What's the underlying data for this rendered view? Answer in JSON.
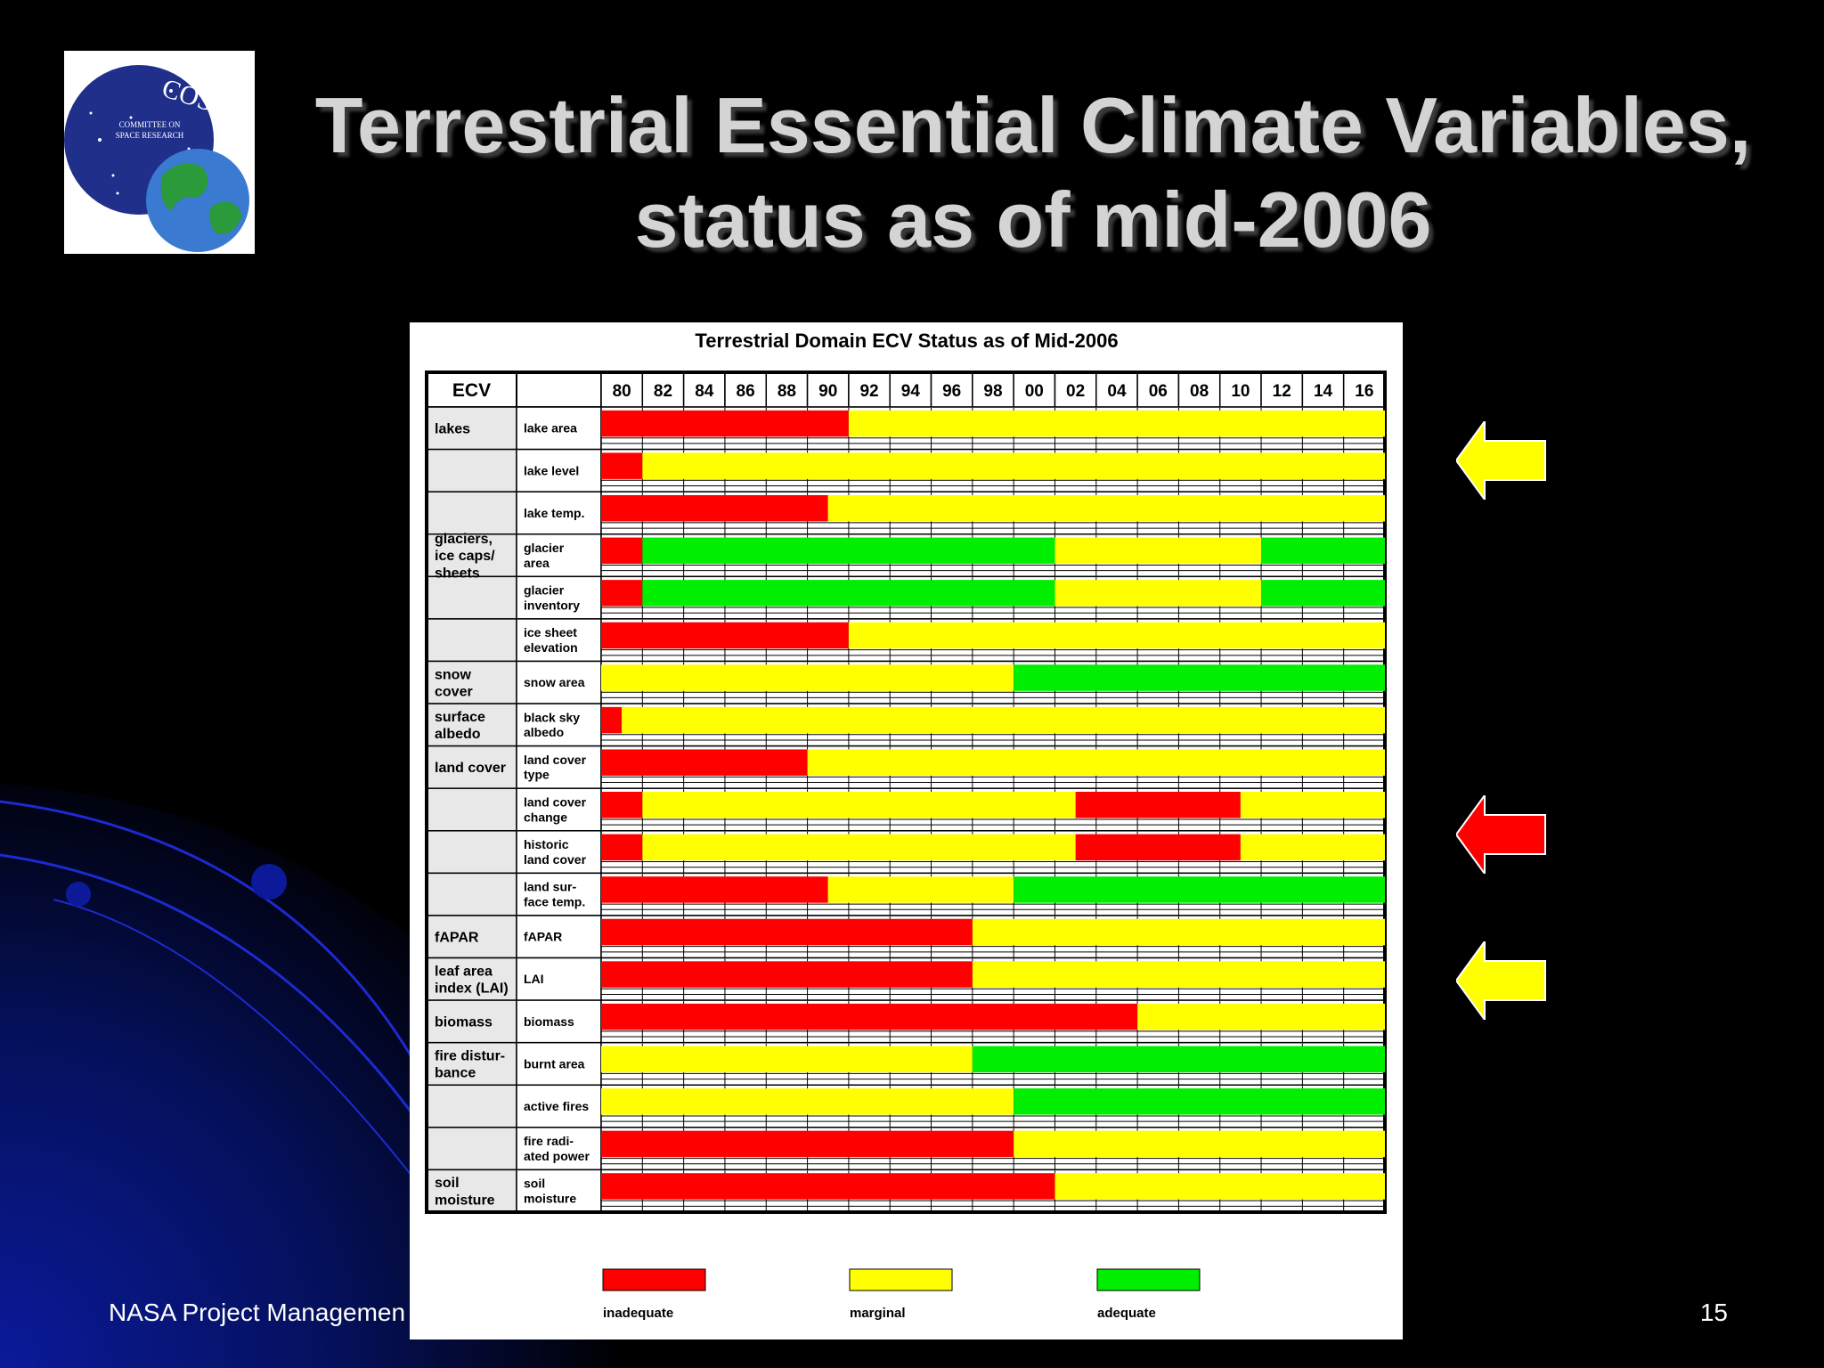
{
  "slide": {
    "title_line1": "Terrestrial Essential Climate Variables,",
    "title_line2": "status as of mid-2006",
    "footer_left": "NASA Project Managemen",
    "page_number": "15",
    "logo": {
      "text": "COSPAR",
      "subtext_line1": "COMMITTEE ON",
      "subtext_line2": "SPACE RESEARCH"
    }
  },
  "colors": {
    "inadequate": "#ff0000",
    "marginal": "#ffff00",
    "adequate": "#00ee00",
    "arrow_yellow": "#ffff00",
    "arrow_red": "#ff0000"
  },
  "arrows": [
    {
      "row": "lake level",
      "color": "yellow"
    },
    {
      "row": "land cover change",
      "color": "red"
    },
    {
      "row": "LAI",
      "color": "yellow"
    }
  ],
  "chart_data": {
    "type": "table",
    "title": "Terrestrial Domain ECV Status as of Mid-2006",
    "header_ecv": "ECV",
    "years": [
      "80",
      "82",
      "84",
      "86",
      "88",
      "90",
      "92",
      "94",
      "96",
      "98",
      "00",
      "02",
      "04",
      "06",
      "08",
      "10",
      "12",
      "14",
      "16"
    ],
    "x_range": [
      1980,
      2018
    ],
    "legend": [
      {
        "label": "inadequate",
        "status": "inadequate"
      },
      {
        "label": "marginal",
        "status": "marginal"
      },
      {
        "label": "adequate",
        "status": "adequate"
      }
    ],
    "rows": [
      {
        "ecv": "lakes",
        "variable": "lake area",
        "segments": [
          {
            "status": "inadequate",
            "from": 1980,
            "to": 1992
          },
          {
            "status": "marginal",
            "from": 1992,
            "to": 2018
          }
        ]
      },
      {
        "ecv": "",
        "variable": "lake level",
        "segments": [
          {
            "status": "inadequate",
            "from": 1980,
            "to": 1982
          },
          {
            "status": "marginal",
            "from": 1982,
            "to": 2018
          }
        ]
      },
      {
        "ecv": "",
        "variable": "lake temp.",
        "segments": [
          {
            "status": "inadequate",
            "from": 1980,
            "to": 1991
          },
          {
            "status": "marginal",
            "from": 1991,
            "to": 2018
          }
        ]
      },
      {
        "ecv": "glaciers,\nice caps/\nsheets",
        "variable": "glacier\narea",
        "segments": [
          {
            "status": "inadequate",
            "from": 1980,
            "to": 1982
          },
          {
            "status": "adequate",
            "from": 1982,
            "to": 2002
          },
          {
            "status": "marginal",
            "from": 2002,
            "to": 2012
          },
          {
            "status": "adequate",
            "from": 2012,
            "to": 2018
          }
        ]
      },
      {
        "ecv": "",
        "variable": "glacier\ninventory",
        "segments": [
          {
            "status": "inadequate",
            "from": 1980,
            "to": 1982
          },
          {
            "status": "adequate",
            "from": 1982,
            "to": 2002
          },
          {
            "status": "marginal",
            "from": 2002,
            "to": 2012
          },
          {
            "status": "adequate",
            "from": 2012,
            "to": 2018
          }
        ]
      },
      {
        "ecv": "",
        "variable": "ice sheet\nelevation",
        "segments": [
          {
            "status": "inadequate",
            "from": 1980,
            "to": 1992
          },
          {
            "status": "marginal",
            "from": 1992,
            "to": 2018
          }
        ]
      },
      {
        "ecv": "snow\ncover",
        "variable": "snow area",
        "segments": [
          {
            "status": "marginal",
            "from": 1980,
            "to": 2000
          },
          {
            "status": "adequate",
            "from": 2000,
            "to": 2018
          }
        ]
      },
      {
        "ecv": "surface\nalbedo",
        "variable": "black sky\nalbedo",
        "segments": [
          {
            "status": "inadequate",
            "from": 1980,
            "to": 1981
          },
          {
            "status": "marginal",
            "from": 1981,
            "to": 2018
          }
        ]
      },
      {
        "ecv": "land cover",
        "variable": "land cover\ntype",
        "segments": [
          {
            "status": "inadequate",
            "from": 1980,
            "to": 1990
          },
          {
            "status": "marginal",
            "from": 1990,
            "to": 2018
          }
        ]
      },
      {
        "ecv": "",
        "variable": "land cover\nchange",
        "segments": [
          {
            "status": "inadequate",
            "from": 1980,
            "to": 1982
          },
          {
            "status": "marginal",
            "from": 1982,
            "to": 2003
          },
          {
            "status": "inadequate",
            "from": 2003,
            "to": 2011
          },
          {
            "status": "marginal",
            "from": 2011,
            "to": 2018
          }
        ]
      },
      {
        "ecv": "",
        "variable": "historic\nland cover",
        "segments": [
          {
            "status": "inadequate",
            "from": 1980,
            "to": 1982
          },
          {
            "status": "marginal",
            "from": 1982,
            "to": 2003
          },
          {
            "status": "inadequate",
            "from": 2003,
            "to": 2011
          },
          {
            "status": "marginal",
            "from": 2011,
            "to": 2018
          }
        ]
      },
      {
        "ecv": "",
        "variable": "land sur-\nface temp.",
        "segments": [
          {
            "status": "inadequate",
            "from": 1980,
            "to": 1991
          },
          {
            "status": "marginal",
            "from": 1991,
            "to": 2000
          },
          {
            "status": "adequate",
            "from": 2000,
            "to": 2018
          }
        ]
      },
      {
        "ecv": "fAPAR",
        "variable": "fAPAR",
        "segments": [
          {
            "status": "inadequate",
            "from": 1980,
            "to": 1998
          },
          {
            "status": "marginal",
            "from": 1998,
            "to": 2018
          }
        ]
      },
      {
        "ecv": "leaf area\nindex (LAI)",
        "variable": "LAI",
        "segments": [
          {
            "status": "inadequate",
            "from": 1980,
            "to": 1998
          },
          {
            "status": "marginal",
            "from": 1998,
            "to": 2018
          }
        ]
      },
      {
        "ecv": "biomass",
        "variable": "biomass",
        "segments": [
          {
            "status": "inadequate",
            "from": 1980,
            "to": 2006
          },
          {
            "status": "marginal",
            "from": 2006,
            "to": 2018
          }
        ]
      },
      {
        "ecv": "fire distur-\nbance",
        "variable": "burnt area",
        "segments": [
          {
            "status": "marginal",
            "from": 1980,
            "to": 1998
          },
          {
            "status": "adequate",
            "from": 1998,
            "to": 2018
          }
        ]
      },
      {
        "ecv": "",
        "variable": "active fires",
        "segments": [
          {
            "status": "marginal",
            "from": 1980,
            "to": 2000
          },
          {
            "status": "adequate",
            "from": 2000,
            "to": 2018
          }
        ]
      },
      {
        "ecv": "",
        "variable": "fire radi-\nated power",
        "segments": [
          {
            "status": "inadequate",
            "from": 1980,
            "to": 2000
          },
          {
            "status": "marginal",
            "from": 2000,
            "to": 2018
          }
        ]
      },
      {
        "ecv": "soil\nmoisture",
        "variable": "soil\nmoisture",
        "segments": [
          {
            "status": "inadequate",
            "from": 1980,
            "to": 2002
          },
          {
            "status": "marginal",
            "from": 2002,
            "to": 2018
          }
        ]
      }
    ]
  }
}
